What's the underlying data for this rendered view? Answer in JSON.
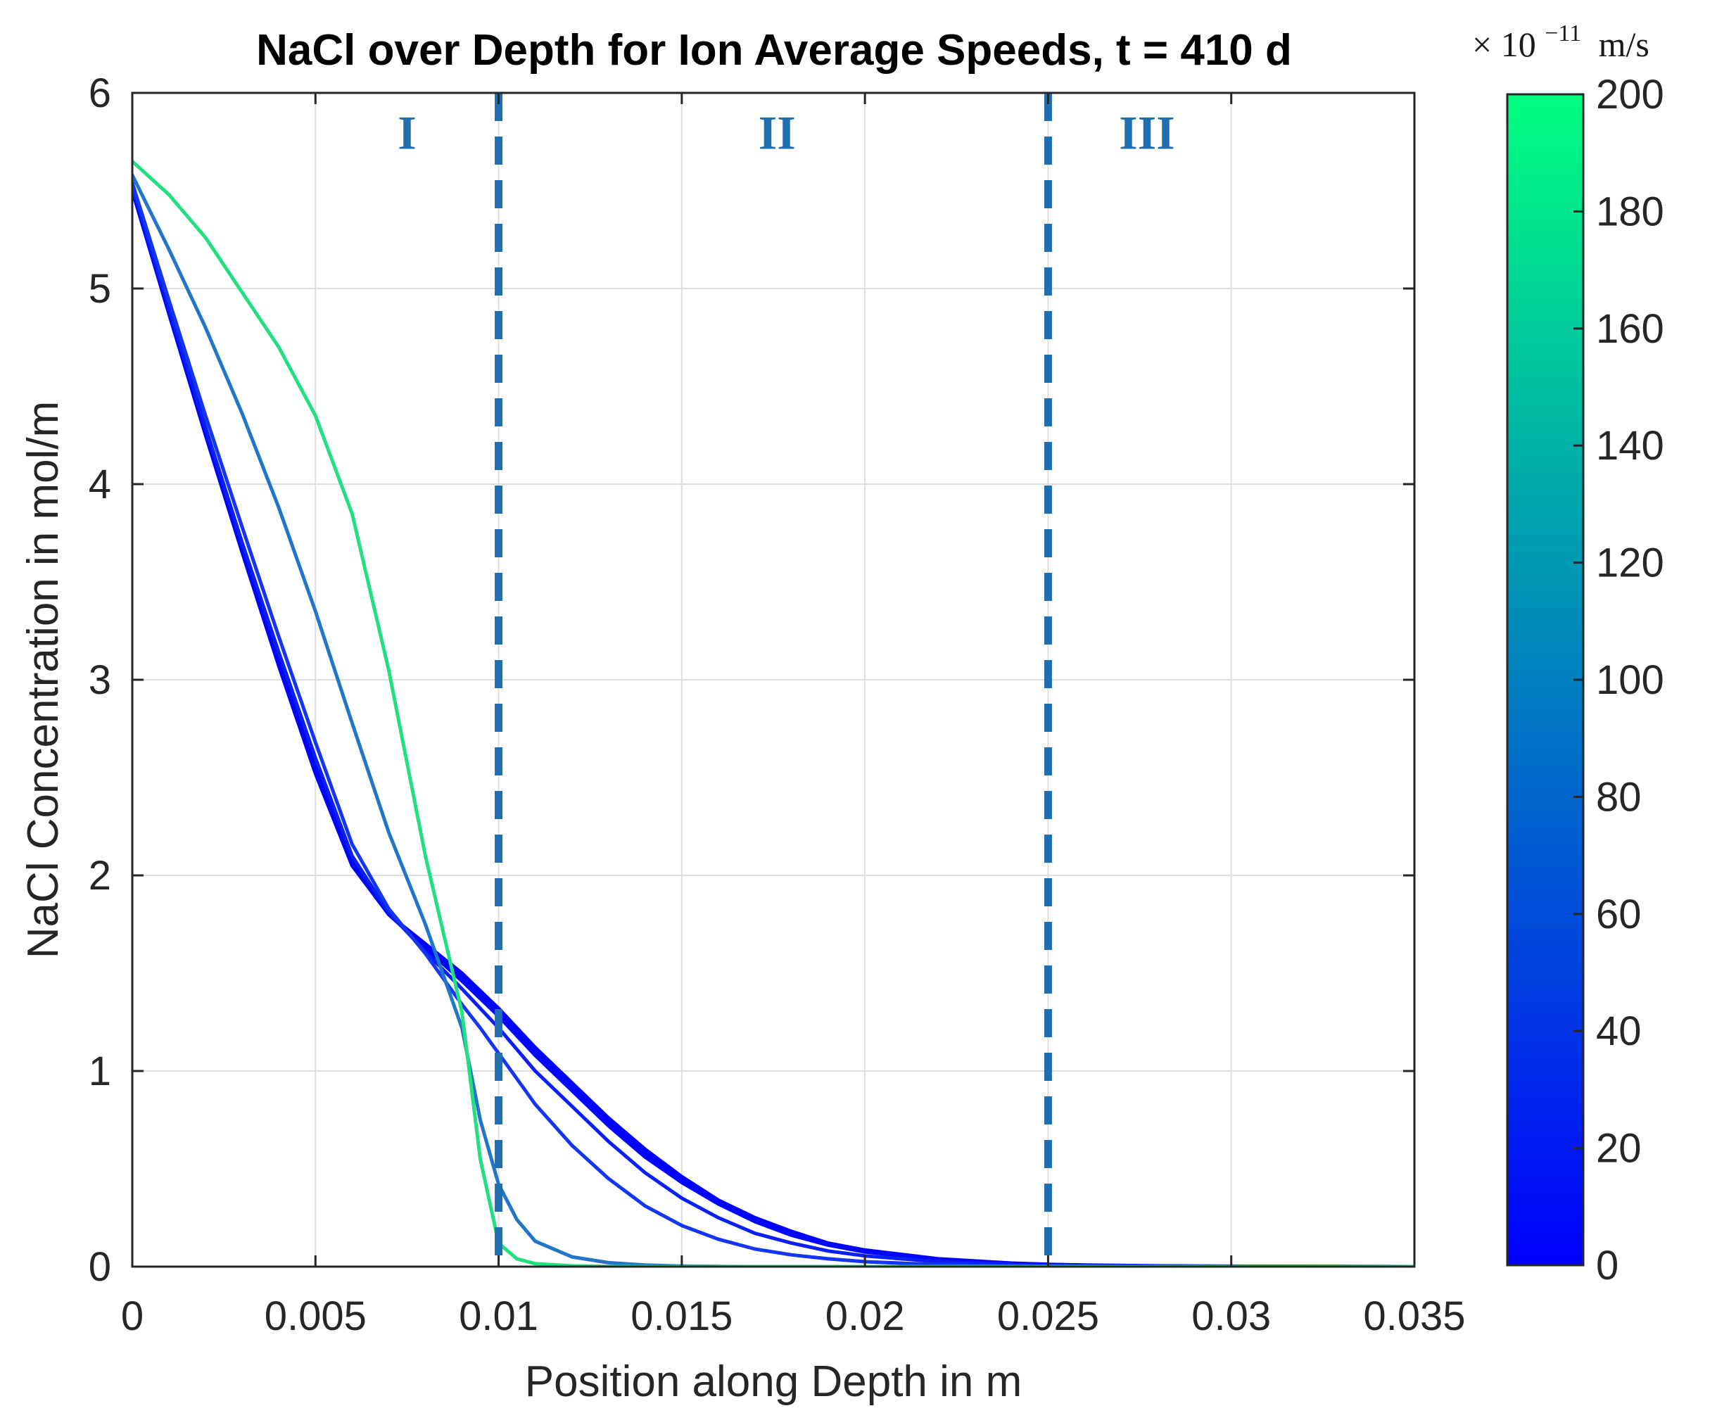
{
  "chart_data": {
    "type": "line",
    "title": "NaCl over Depth for Ion Average Speeds, t = 410 d",
    "xlabel": "Position along Depth in m",
    "ylabel": "NaCl Concentration in mol/m",
    "xlim": [
      0,
      0.035
    ],
    "ylim": [
      0,
      6
    ],
    "xticks": [
      0,
      0.005,
      0.01,
      0.015,
      0.02,
      0.025,
      0.03,
      0.035
    ],
    "xtick_labels": [
      "0",
      "0.005",
      "0.01",
      "0.015",
      "0.02",
      "0.025",
      "0.03",
      "0.035"
    ],
    "yticks": [
      0,
      1,
      2,
      3,
      4,
      5,
      6
    ],
    "ytick_labels": [
      "0",
      "1",
      "2",
      "3",
      "4",
      "5",
      "6"
    ],
    "grid": true,
    "region_boundaries": [
      0.01,
      0.025
    ],
    "region_labels": [
      {
        "text": "I",
        "x": 0.0075
      },
      {
        "text": "II",
        "x": 0.0176
      },
      {
        "text": "III",
        "x": 0.0277
      }
    ],
    "region_label_y": 5.8,
    "colorbar": {
      "label_prefix": "× 10",
      "label_exponent": "−11",
      "label_unit": "m/s",
      "range": [
        0,
        200
      ],
      "ticks": [
        0,
        20,
        40,
        60,
        80,
        100,
        120,
        140,
        160,
        180,
        200
      ],
      "tick_labels": [
        "0",
        "20",
        "40",
        "60",
        "80",
        "100",
        "120",
        "140",
        "160",
        "180",
        "200"
      ],
      "colormap": [
        "#0000ff",
        "#00ff80"
      ]
    },
    "x": [
      0,
      0.001,
      0.002,
      0.003,
      0.004,
      0.005,
      0.006,
      0.007,
      0.008,
      0.009,
      0.0095,
      0.01,
      0.0105,
      0.011,
      0.012,
      0.013,
      0.014,
      0.015,
      0.016,
      0.017,
      0.018,
      0.019,
      0.02,
      0.022,
      0.024,
      0.025,
      0.026,
      0.028,
      0.03,
      0.035
    ],
    "series": [
      {
        "name": "0",
        "speed": 0,
        "color": "#0000ff",
        "values": [
          5.5,
          4.87,
          4.25,
          3.65,
          3.07,
          2.52,
          2.05,
          1.8,
          1.65,
          1.5,
          1.41,
          1.32,
          1.22,
          1.12,
          0.94,
          0.76,
          0.6,
          0.46,
          0.34,
          0.25,
          0.18,
          0.12,
          0.085,
          0.04,
          0.018,
          0.012,
          0.008,
          0.004,
          0.002,
          0.0
        ]
      },
      {
        "name": "10",
        "speed": 10,
        "color": "#0003fe",
        "values": [
          5.5,
          4.88,
          4.26,
          3.67,
          3.09,
          2.54,
          2.06,
          1.8,
          1.64,
          1.48,
          1.39,
          1.3,
          1.2,
          1.1,
          0.92,
          0.74,
          0.58,
          0.44,
          0.33,
          0.24,
          0.17,
          0.115,
          0.08,
          0.038,
          0.017,
          0.011,
          0.007,
          0.003,
          0.001,
          0.0
        ]
      },
      {
        "name": "20",
        "speed": 20,
        "color": "#0006fd",
        "values": [
          5.5,
          4.88,
          4.27,
          3.68,
          3.11,
          2.56,
          2.07,
          1.8,
          1.63,
          1.46,
          1.37,
          1.28,
          1.18,
          1.08,
          0.9,
          0.72,
          0.56,
          0.43,
          0.32,
          0.23,
          0.16,
          0.11,
          0.075,
          0.036,
          0.016,
          0.01,
          0.006,
          0.003,
          0.001,
          0.0
        ]
      },
      {
        "name": "40",
        "speed": 40,
        "color": "#0a1ef8",
        "values": [
          5.52,
          4.9,
          4.29,
          3.7,
          3.14,
          2.6,
          2.1,
          1.81,
          1.61,
          1.42,
          1.32,
          1.22,
          1.11,
          1.0,
          0.82,
          0.64,
          0.48,
          0.35,
          0.25,
          0.17,
          0.12,
          0.08,
          0.055,
          0.025,
          0.011,
          0.007,
          0.004,
          0.002,
          0.001,
          0.0
        ]
      },
      {
        "name": "60",
        "speed": 60,
        "color": "#1436f2",
        "values": [
          5.54,
          4.94,
          4.35,
          3.78,
          3.22,
          2.68,
          2.16,
          1.83,
          1.6,
          1.34,
          1.22,
          1.09,
          0.96,
          0.83,
          0.62,
          0.45,
          0.31,
          0.21,
          0.14,
          0.09,
          0.06,
          0.04,
          0.025,
          0.01,
          0.004,
          0.002,
          0.001,
          0.0,
          0.0,
          0.0
        ]
      },
      {
        "name": "100",
        "speed": 100,
        "color": "#2076c8",
        "values": [
          5.58,
          5.2,
          4.8,
          4.36,
          3.88,
          3.35,
          2.78,
          2.22,
          1.75,
          1.22,
          0.75,
          0.42,
          0.24,
          0.13,
          0.05,
          0.02,
          0.008,
          0.003,
          0.001,
          0.0,
          0.0,
          0.0,
          0.0,
          0.0,
          0.0,
          0.0,
          0.0,
          0.0,
          0.0,
          0.0
        ]
      },
      {
        "name": "200",
        "speed": 200,
        "color": "#22e082",
        "values": [
          5.65,
          5.48,
          5.26,
          4.98,
          4.7,
          4.35,
          3.85,
          3.05,
          2.1,
          1.3,
          0.55,
          0.12,
          0.04,
          0.015,
          0.004,
          0.001,
          0.0,
          0.0,
          0.0,
          0.0,
          0.0,
          0.0,
          0.0,
          0.0,
          0.0,
          0.0,
          0.0,
          0.0,
          0.0,
          0.0
        ]
      }
    ]
  }
}
